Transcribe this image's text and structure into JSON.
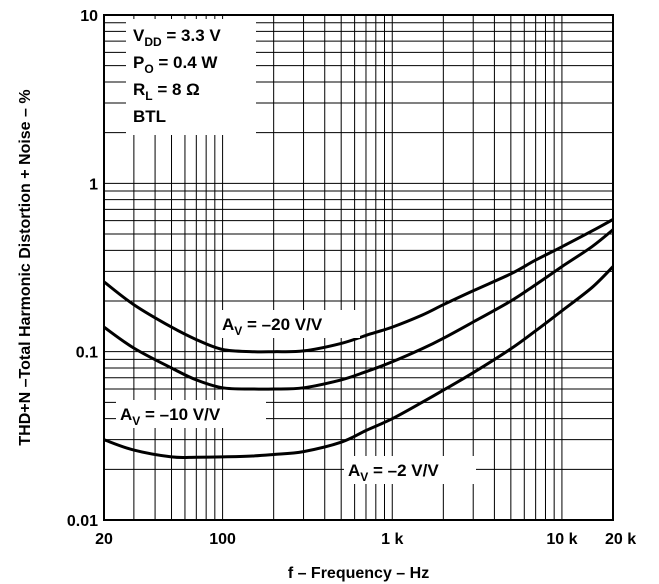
{
  "chart_data": {
    "type": "line",
    "xscale": "log",
    "yscale": "log",
    "xlim": [
      20,
      20000
    ],
    "ylim": [
      0.01,
      10
    ],
    "grid": true,
    "xlabel": "f – Frequency – Hz",
    "ylabel": "THD+N –Total Harmonic Distortion + Noise – %",
    "x_ticks": [
      {
        "value": 20,
        "label": "20"
      },
      {
        "value": 100,
        "label": "100"
      },
      {
        "value": 1000,
        "label": "1 k"
      },
      {
        "value": 10000,
        "label": "10 k"
      },
      {
        "value": 20000,
        "label": "20 k"
      }
    ],
    "y_ticks": [
      {
        "value": 10,
        "label": "10"
      },
      {
        "value": 1,
        "label": "1"
      },
      {
        "value": 0.1,
        "label": "0.1"
      },
      {
        "value": 0.01,
        "label": "0.01"
      }
    ],
    "conditions": [
      {
        "main": "V",
        "sub": "DD",
        "rest": " = 3.3 V"
      },
      {
        "main": "P",
        "sub": "O",
        "rest": " = 0.4 W"
      },
      {
        "main": "R",
        "sub": "L",
        "rest": " = 8 Ω"
      },
      {
        "main": "BTL",
        "sub": "",
        "rest": ""
      }
    ],
    "series": [
      {
        "name": "AV = –20 V/V",
        "label_main": "A",
        "label_sub": "V",
        "label_rest": " = –20 V/V",
        "x": [
          20,
          30,
          50,
          70,
          100,
          150,
          200,
          300,
          500,
          700,
          1000,
          1500,
          2000,
          3000,
          5000,
          7000,
          10000,
          15000,
          20000
        ],
        "y": [
          0.26,
          0.19,
          0.14,
          0.118,
          0.103,
          0.1,
          0.1,
          0.101,
          0.112,
          0.125,
          0.14,
          0.165,
          0.19,
          0.23,
          0.29,
          0.35,
          0.42,
          0.52,
          0.61
        ]
      },
      {
        "name": "AV = –10 V/V",
        "label_main": "A",
        "label_sub": "V",
        "label_rest": " = –10 V/V",
        "x": [
          20,
          30,
          50,
          70,
          100,
          150,
          200,
          300,
          500,
          700,
          1000,
          1500,
          2000,
          3000,
          5000,
          7000,
          10000,
          15000,
          20000
        ],
        "y": [
          0.14,
          0.105,
          0.08,
          0.068,
          0.061,
          0.06,
          0.06,
          0.061,
          0.068,
          0.076,
          0.087,
          0.104,
          0.12,
          0.15,
          0.2,
          0.25,
          0.32,
          0.42,
          0.53
        ]
      },
      {
        "name": "AV = –2 V/V",
        "label_main": "A",
        "label_sub": "V",
        "label_rest": " = –2 V/V",
        "x": [
          20,
          30,
          50,
          70,
          100,
          150,
          200,
          300,
          500,
          700,
          1000,
          1500,
          2000,
          3000,
          5000,
          7000,
          10000,
          15000,
          20000
        ],
        "y": [
          0.03,
          0.026,
          0.0237,
          0.0236,
          0.0237,
          0.024,
          0.0245,
          0.0255,
          0.029,
          0.034,
          0.04,
          0.05,
          0.059,
          0.075,
          0.104,
          0.133,
          0.175,
          0.24,
          0.32
        ]
      }
    ]
  }
}
